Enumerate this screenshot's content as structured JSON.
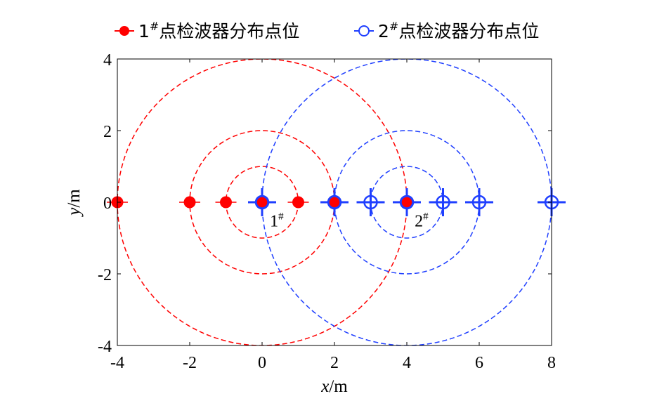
{
  "chart_data": {
    "type": "scatter",
    "xlabel_var": "x",
    "xlabel_unit": "/m",
    "ylabel_var": "y",
    "ylabel_unit": "/m",
    "xlim": [
      -4,
      8
    ],
    "ylim": [
      -4,
      4
    ],
    "x_ticks": [
      "-4",
      "-2",
      "0",
      "2",
      "4",
      "6",
      "8"
    ],
    "y_ticks": [
      "4",
      "2",
      "0",
      "-2",
      "-4"
    ],
    "legend_position": "top",
    "series": [
      {
        "name": "1#点检波器分布点位",
        "name_base": "1",
        "name_sup": "#",
        "name_rest": "点检波器分布点位",
        "color": "#ff0000",
        "marker": "filled-circle",
        "center": [
          0,
          0
        ],
        "circle_radii": [
          1,
          2,
          4
        ],
        "points": [
          [
            -4,
            0
          ],
          [
            -2,
            0
          ],
          [
            -1,
            0
          ],
          [
            0,
            0
          ],
          [
            1,
            0
          ],
          [
            2,
            0
          ],
          [
            4,
            0
          ]
        ]
      },
      {
        "name": "2#点检波器分布点位",
        "name_base": "2",
        "name_sup": "#",
        "name_rest": "点检波器分布点位",
        "color": "#1f3fff",
        "marker": "open-circle",
        "center": [
          4,
          0
        ],
        "circle_radii": [
          1,
          2,
          4
        ],
        "points": [
          [
            0,
            0
          ],
          [
            2,
            0
          ],
          [
            3,
            0
          ],
          [
            4,
            0
          ],
          [
            5,
            0
          ],
          [
            6,
            0
          ],
          [
            8,
            0
          ]
        ]
      }
    ],
    "annotations": [
      {
        "base": "1",
        "sup": "#",
        "x": 0.45,
        "y": -0.5
      },
      {
        "base": "2",
        "sup": "#",
        "x": 4.45,
        "y": -0.5
      }
    ]
  }
}
